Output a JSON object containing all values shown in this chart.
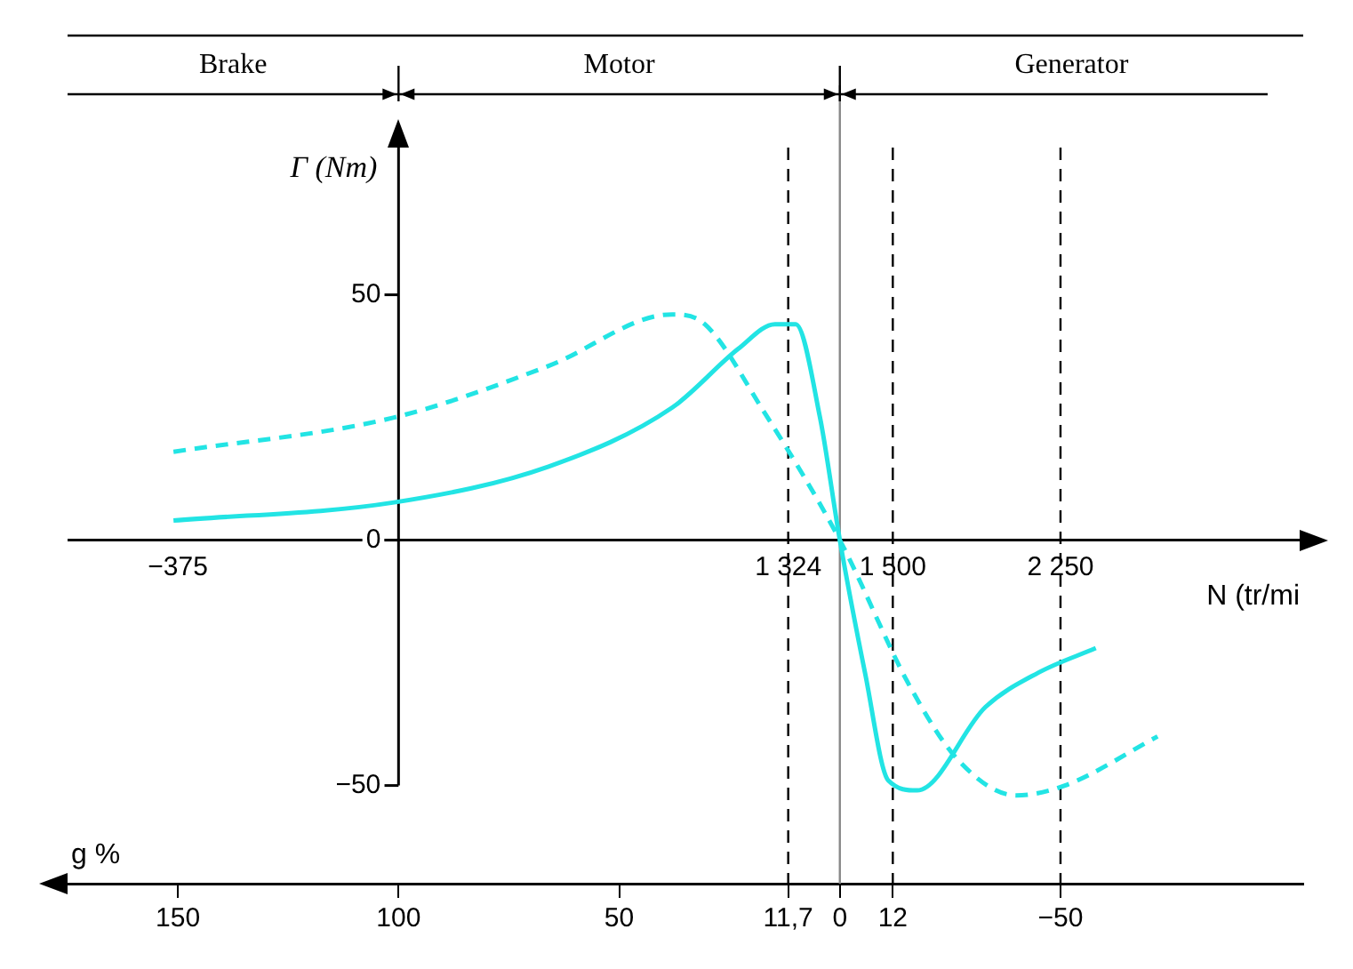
{
  "chart_data": {
    "type": "line",
    "xlabel": "g %",
    "ylabel": "Γ (Nm)",
    "x2label": "N (tr/mi",
    "xlim": [
      175,
      -105
    ],
    "xticks": [
      150,
      100,
      50,
      {
        "value": 11.7,
        "label": "11,7"
      },
      0,
      {
        "value": -12,
        "label": "12"
      },
      -50
    ],
    "ylim": [
      -70,
      80
    ],
    "yticks": [
      50,
      0,
      -50
    ],
    "series": [
      {
        "color": "#22e4e4",
        "line_style": "solid",
        "x": [
          151,
          101,
          66,
          38,
          23,
          14.7,
          10,
          4.5,
          0,
          -5.7,
          -11,
          -17.5,
          -33,
          -45,
          -58
        ],
        "values": [
          4,
          7.7,
          15,
          27,
          39,
          44,
          44,
          25,
          0,
          -27,
          -49,
          -51,
          -34,
          -27,
          -22
        ]
      },
      {
        "color": "#22e4e4",
        "line_style": "dashed",
        "x": [
          151,
          101,
          66,
          38,
          30.6,
          17.5,
          0,
          -16,
          -27,
          -40,
          -51,
          -72
        ],
        "values": [
          18,
          25,
          35.5,
          46,
          44,
          26.6,
          0,
          -30,
          -45,
          -52,
          -50,
          -40
        ]
      }
    ],
    "ref_lines": [
      {
        "axis": "x",
        "value": 11.7,
        "line_style": "dashed",
        "color": "#000000"
      },
      {
        "axis": "x",
        "value": 0,
        "line_style": "solid",
        "color": "#888888"
      },
      {
        "axis": "x",
        "value": -12,
        "line_style": "dashed",
        "color": "#000000"
      },
      {
        "axis": "x",
        "value": -50,
        "line_style": "dashed",
        "color": "#000000"
      }
    ],
    "annotations": [
      "Brake",
      "Motor",
      "Generator",
      "−375",
      {
        "text": "1 324",
        "x": 11.7,
        "y": 0
      },
      {
        "text": "1 500",
        "x": -12,
        "y": 0
      },
      {
        "text": "2 250",
        "x": -50,
        "y": 0
      }
    ],
    "grid": false,
    "legend": false,
    "marker": "none"
  }
}
